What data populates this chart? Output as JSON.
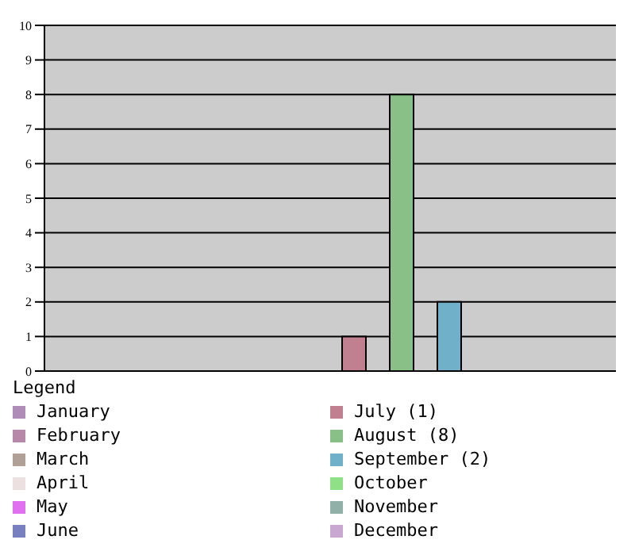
{
  "chart_data": {
    "type": "bar",
    "legend_title": "Legend",
    "categories": [
      null,
      null,
      null,
      null,
      null,
      null,
      null,
      null,
      null,
      null,
      null,
      null
    ],
    "series": [
      {
        "name": "January",
        "color": "#b08cb8",
        "values": [
          0,
          null,
          null,
          null,
          null,
          null,
          null,
          null,
          null,
          null,
          null,
          null
        ]
      },
      {
        "name": "February",
        "color": "#b888a8",
        "values": [
          null,
          0,
          null,
          null,
          null,
          null,
          null,
          null,
          null,
          null,
          null,
          null
        ]
      },
      {
        "name": "March",
        "color": "#b0a098",
        "values": [
          null,
          null,
          0,
          null,
          null,
          null,
          null,
          null,
          null,
          null,
          null,
          null
        ]
      },
      {
        "name": "April",
        "color": "#ece0e0",
        "values": [
          null,
          null,
          null,
          0,
          null,
          null,
          null,
          null,
          null,
          null,
          null,
          null
        ]
      },
      {
        "name": "May",
        "color": "#e070f0",
        "values": [
          null,
          null,
          null,
          null,
          0,
          null,
          null,
          null,
          null,
          null,
          null,
          null
        ]
      },
      {
        "name": "June",
        "color": "#7880c0",
        "values": [
          null,
          null,
          null,
          null,
          null,
          0,
          null,
          null,
          null,
          null,
          null,
          null
        ]
      },
      {
        "name": "July (1)",
        "color": "#c08090",
        "values": [
          null,
          null,
          null,
          null,
          null,
          null,
          1,
          null,
          null,
          null,
          null,
          null
        ]
      },
      {
        "name": "August (8)",
        "color": "#88c088",
        "values": [
          null,
          null,
          null,
          null,
          null,
          null,
          null,
          8,
          null,
          null,
          null,
          null
        ]
      },
      {
        "name": "September (2)",
        "color": "#70b0c8",
        "values": [
          null,
          null,
          null,
          null,
          null,
          null,
          null,
          null,
          2,
          null,
          null,
          null
        ]
      },
      {
        "name": "October",
        "color": "#90e088",
        "values": [
          null,
          null,
          null,
          null,
          null,
          null,
          null,
          null,
          null,
          0,
          null,
          null
        ]
      },
      {
        "name": "November",
        "color": "#90b0a8",
        "values": [
          null,
          null,
          null,
          null,
          null,
          null,
          null,
          null,
          null,
          null,
          0,
          null
        ]
      },
      {
        "name": "December",
        "color": "#c8a8d0",
        "values": [
          null,
          null,
          null,
          null,
          null,
          null,
          null,
          null,
          null,
          null,
          null,
          0
        ]
      }
    ],
    "ylim": [
      0,
      10
    ],
    "yticks": [
      0,
      1,
      2,
      3,
      4,
      5,
      6,
      7,
      8,
      9,
      10
    ],
    "grid": "y",
    "legend": "bottom",
    "tick_labels": "y"
  }
}
